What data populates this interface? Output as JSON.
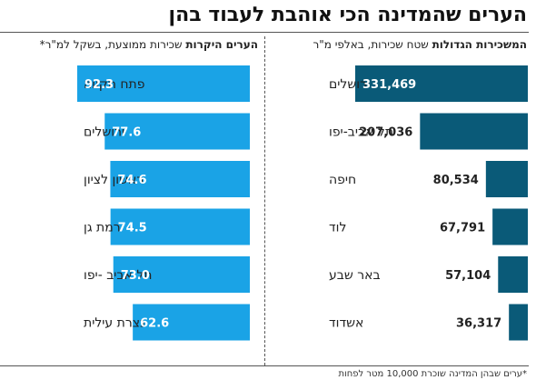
{
  "title": "הערים שהמדינה הכי אוהבת לעבוד בהן",
  "footnote": "*ערים שבהן המדינה שוכרת 10,000 מטר לפחות",
  "colors": {
    "right_bar": "#0a5a78",
    "left_bar": "#1aa3e6"
  },
  "chart_data": [
    {
      "type": "bar",
      "orientation": "horizontal",
      "title": "המשכירות הגדולות",
      "subtitle": "שטח שכירות, באלפי מ\"ר",
      "categories": [
        "ירושלים",
        "תל אביב-יפו",
        "חיפה",
        "לוד",
        "באר שבע",
        "אשדוד"
      ],
      "values": [
        331469,
        207036,
        80534,
        67791,
        57104,
        36317
      ],
      "value_labels": [
        "331,469",
        "207,036",
        "80,534",
        "67,791",
        "57,104",
        "36,317"
      ],
      "xlim": [
        0,
        331469
      ]
    },
    {
      "type": "bar",
      "orientation": "horizontal",
      "title": "הערים היקרות",
      "subtitle": "שכירות ממוצעת, בשקל למ\"ר*",
      "categories": [
        "פתח תקווה",
        "ירושלים",
        "ראשון לציון",
        "רמת גן",
        "תל אביב -יפו",
        "נצרת עילית"
      ],
      "values": [
        92.3,
        77.6,
        74.6,
        74.5,
        73.0,
        62.6
      ],
      "value_labels": [
        "92.3",
        "77.6",
        "74.6",
        "74.5",
        "73.0",
        "62.6"
      ],
      "xlim": [
        0,
        92.3
      ]
    }
  ]
}
